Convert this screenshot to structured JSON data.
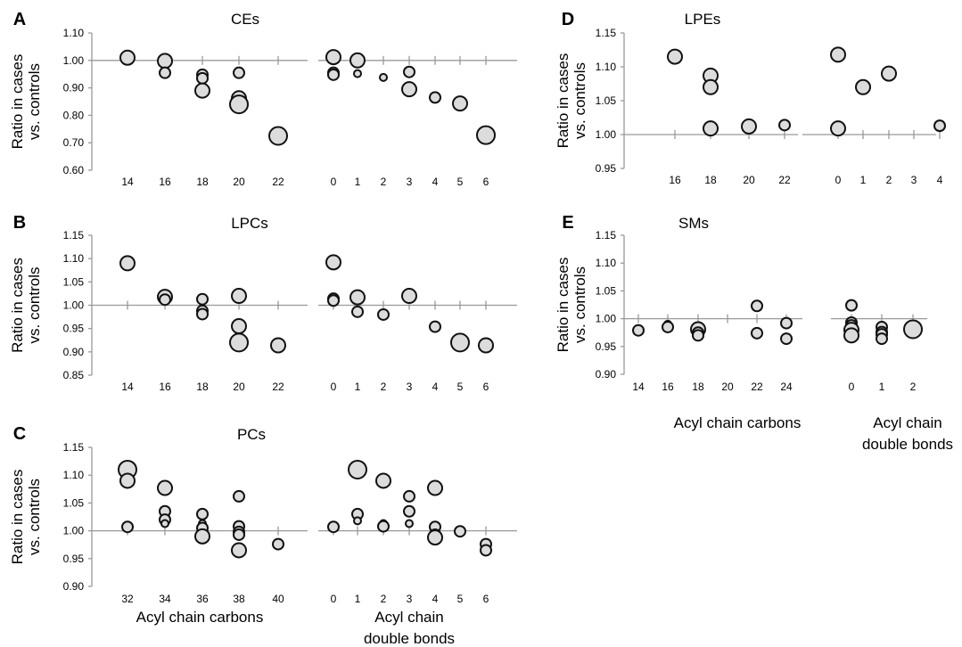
{
  "chart_data": {
    "type": "scatter",
    "ylabel": [
      "Ratio in cases",
      "vs. controls"
    ],
    "group_xlabels": {
      "carbons": [
        "Acyl chain carbons"
      ],
      "bonds": [
        "Acyl chain",
        "double bonds"
      ]
    },
    "colors": {
      "fill": "#dcdcdc",
      "stroke": "#111111",
      "refline": "#999999"
    },
    "panels": [
      {
        "letter": "A",
        "title": "CEs",
        "ylim": [
          0.6,
          1.1
        ],
        "yticks": [
          "0.60",
          "0.70",
          "0.80",
          "0.90",
          "1.00",
          "1.10"
        ],
        "reference_y": 1.0,
        "groups": [
          {
            "key": "carbons",
            "categories": [
              "14",
              "16",
              "18",
              "20",
              "22"
            ],
            "points": [
              {
                "x": "14",
                "y": 1.01,
                "size": "medium"
              },
              {
                "x": "16",
                "y": 0.998,
                "size": "medium"
              },
              {
                "x": "16",
                "y": 0.955,
                "size": "small"
              },
              {
                "x": "18",
                "y": 0.948,
                "size": "small"
              },
              {
                "x": "18",
                "y": 0.935,
                "size": "small"
              },
              {
                "x": "18",
                "y": 0.89,
                "size": "medium"
              },
              {
                "x": "20",
                "y": 0.955,
                "size": "small"
              },
              {
                "x": "20",
                "y": 0.862,
                "size": "medium"
              },
              {
                "x": "20",
                "y": 0.84,
                "size": "large"
              },
              {
                "x": "22",
                "y": 0.725,
                "size": "large"
              }
            ]
          },
          {
            "key": "bonds",
            "categories": [
              "0",
              "1",
              "2",
              "3",
              "4",
              "5",
              "6"
            ],
            "points": [
              {
                "x": "0",
                "y": 1.012,
                "size": "medium"
              },
              {
                "x": "0",
                "y": 0.955,
                "size": "small"
              },
              {
                "x": "0",
                "y": 0.948,
                "size": "small"
              },
              {
                "x": "1",
                "y": 1.0,
                "size": "medium"
              },
              {
                "x": "1",
                "y": 0.952,
                "size": "xsmall"
              },
              {
                "x": "2",
                "y": 0.938,
                "size": "xsmall"
              },
              {
                "x": "3",
                "y": 0.958,
                "size": "small"
              },
              {
                "x": "3",
                "y": 0.895,
                "size": "medium"
              },
              {
                "x": "4",
                "y": 0.865,
                "size": "small"
              },
              {
                "x": "5",
                "y": 0.843,
                "size": "medium"
              },
              {
                "x": "6",
                "y": 0.728,
                "size": "large"
              }
            ]
          }
        ]
      },
      {
        "letter": "B",
        "title": "LPCs",
        "ylim": [
          0.85,
          1.15
        ],
        "yticks": [
          "0.85",
          "0.90",
          "0.95",
          "1.00",
          "1.05",
          "1.10",
          "1.15"
        ],
        "reference_y": 1.0,
        "groups": [
          {
            "key": "carbons",
            "categories": [
              "14",
              "16",
              "18",
              "20",
              "22"
            ],
            "points": [
              {
                "x": "14",
                "y": 1.09,
                "size": "medium"
              },
              {
                "x": "16",
                "y": 1.018,
                "size": "medium"
              },
              {
                "x": "16",
                "y": 1.012,
                "size": "small"
              },
              {
                "x": "18",
                "y": 1.013,
                "size": "small"
              },
              {
                "x": "18",
                "y": 0.988,
                "size": "small"
              },
              {
                "x": "18",
                "y": 0.981,
                "size": "small"
              },
              {
                "x": "20",
                "y": 1.02,
                "size": "medium"
              },
              {
                "x": "20",
                "y": 0.955,
                "size": "medium"
              },
              {
                "x": "20",
                "y": 0.92,
                "size": "large"
              },
              {
                "x": "22",
                "y": 0.914,
                "size": "medium"
              }
            ]
          },
          {
            "key": "bonds",
            "categories": [
              "0",
              "1",
              "2",
              "3",
              "4",
              "5",
              "6"
            ],
            "points": [
              {
                "x": "0",
                "y": 1.092,
                "size": "medium"
              },
              {
                "x": "0",
                "y": 1.014,
                "size": "small"
              },
              {
                "x": "0",
                "y": 1.01,
                "size": "small"
              },
              {
                "x": "1",
                "y": 1.017,
                "size": "medium"
              },
              {
                "x": "1",
                "y": 0.986,
                "size": "small"
              },
              {
                "x": "2",
                "y": 0.98,
                "size": "small"
              },
              {
                "x": "3",
                "y": 1.02,
                "size": "medium"
              },
              {
                "x": "4",
                "y": 0.954,
                "size": "small"
              },
              {
                "x": "5",
                "y": 0.92,
                "size": "large"
              },
              {
                "x": "6",
                "y": 0.914,
                "size": "medium"
              }
            ]
          }
        ]
      },
      {
        "letter": "C",
        "title": "PCs",
        "ylim": [
          0.9,
          1.15
        ],
        "yticks": [
          "0.90",
          "0.95",
          "1.00",
          "1.05",
          "1.10",
          "1.15"
        ],
        "reference_y": 1.0,
        "groups": [
          {
            "key": "carbons",
            "categories": [
              "32",
              "34",
              "36",
              "38",
              "40"
            ],
            "points": [
              {
                "x": "32",
                "y": 1.11,
                "size": "large"
              },
              {
                "x": "32",
                "y": 1.09,
                "size": "medium"
              },
              {
                "x": "32",
                "y": 1.007,
                "size": "small"
              },
              {
                "x": "34",
                "y": 1.077,
                "size": "medium"
              },
              {
                "x": "34",
                "y": 1.035,
                "size": "small"
              },
              {
                "x": "34",
                "y": 1.02,
                "size": "small"
              },
              {
                "x": "34",
                "y": 1.013,
                "size": "xsmall"
              },
              {
                "x": "36",
                "y": 1.03,
                "size": "small"
              },
              {
                "x": "36",
                "y": 1.013,
                "size": "xsmall"
              },
              {
                "x": "36",
                "y": 1.005,
                "size": "small"
              },
              {
                "x": "36",
                "y": 0.99,
                "size": "medium"
              },
              {
                "x": "38",
                "y": 1.062,
                "size": "small"
              },
              {
                "x": "38",
                "y": 1.008,
                "size": "small"
              },
              {
                "x": "38",
                "y": 0.998,
                "size": "small"
              },
              {
                "x": "38",
                "y": 0.993,
                "size": "small"
              },
              {
                "x": "38",
                "y": 0.965,
                "size": "medium"
              },
              {
                "x": "40",
                "y": 0.976,
                "size": "small"
              }
            ]
          },
          {
            "key": "bonds",
            "categories": [
              "0",
              "1",
              "2",
              "3",
              "4",
              "5",
              "6"
            ],
            "points": [
              {
                "x": "0",
                "y": 1.007,
                "size": "small"
              },
              {
                "x": "1",
                "y": 1.11,
                "size": "large"
              },
              {
                "x": "1",
                "y": 1.03,
                "size": "small"
              },
              {
                "x": "1",
                "y": 1.018,
                "size": "xsmall"
              },
              {
                "x": "2",
                "y": 1.09,
                "size": "medium"
              },
              {
                "x": "2",
                "y": 1.013,
                "size": "xsmall"
              },
              {
                "x": "2",
                "y": 1.008,
                "size": "small"
              },
              {
                "x": "3",
                "y": 1.062,
                "size": "small"
              },
              {
                "x": "3",
                "y": 1.035,
                "size": "small"
              },
              {
                "x": "3",
                "y": 1.013,
                "size": "xsmall"
              },
              {
                "x": "4",
                "y": 1.077,
                "size": "medium"
              },
              {
                "x": "4",
                "y": 1.007,
                "size": "small"
              },
              {
                "x": "4",
                "y": 0.993,
                "size": "small"
              },
              {
                "x": "4",
                "y": 0.988,
                "size": "medium"
              },
              {
                "x": "5",
                "y": 0.999,
                "size": "small"
              },
              {
                "x": "6",
                "y": 0.976,
                "size": "small"
              },
              {
                "x": "6",
                "y": 0.965,
                "size": "small"
              }
            ]
          }
        ]
      },
      {
        "letter": "D",
        "title": "LPEs",
        "ylim": [
          0.95,
          1.15
        ],
        "yticks": [
          "0.95",
          "1.00",
          "1.05",
          "1.10",
          "1.15"
        ],
        "reference_y": 1.0,
        "groups": [
          {
            "key": "carbons",
            "categories": [
              "16",
              "18",
              "20",
              "22"
            ],
            "points": [
              {
                "x": "16",
                "y": 1.115,
                "size": "medium"
              },
              {
                "x": "18",
                "y": 1.087,
                "size": "medium"
              },
              {
                "x": "18",
                "y": 1.07,
                "size": "medium"
              },
              {
                "x": "18",
                "y": 1.009,
                "size": "medium"
              },
              {
                "x": "20",
                "y": 1.012,
                "size": "medium"
              },
              {
                "x": "22",
                "y": 1.014,
                "size": "small"
              }
            ]
          },
          {
            "key": "bonds",
            "categories": [
              "0",
              "1",
              "2",
              "3",
              "4"
            ],
            "points": [
              {
                "x": "0",
                "y": 1.118,
                "size": "medium"
              },
              {
                "x": "0",
                "y": 1.009,
                "size": "medium"
              },
              {
                "x": "1",
                "y": 1.07,
                "size": "medium"
              },
              {
                "x": "2",
                "y": 1.09,
                "size": "medium"
              },
              {
                "x": "4",
                "y": 1.013,
                "size": "small"
              }
            ]
          }
        ]
      },
      {
        "letter": "E",
        "title": "SMs",
        "ylim": [
          0.9,
          1.15
        ],
        "yticks": [
          "0.90",
          "0.95",
          "1.00",
          "1.05",
          "1.10",
          "1.15"
        ],
        "reference_y": 1.0,
        "groups": [
          {
            "key": "carbons",
            "categories": [
              "14",
              "16",
              "18",
              "20",
              "22",
              "24"
            ],
            "points": [
              {
                "x": "14",
                "y": 0.979,
                "size": "small"
              },
              {
                "x": "16",
                "y": 0.99,
                "size": "xsmall"
              },
              {
                "x": "16",
                "y": 0.985,
                "size": "small"
              },
              {
                "x": "18",
                "y": 0.981,
                "size": "medium"
              },
              {
                "x": "18",
                "y": 0.975,
                "size": "small"
              },
              {
                "x": "18",
                "y": 0.97,
                "size": "small"
              },
              {
                "x": "22",
                "y": 1.023,
                "size": "small"
              },
              {
                "x": "22",
                "y": 0.974,
                "size": "small"
              },
              {
                "x": "24",
                "y": 0.992,
                "size": "small"
              },
              {
                "x": "24",
                "y": 0.964,
                "size": "small"
              }
            ]
          },
          {
            "key": "bonds",
            "categories": [
              "0",
              "1",
              "2"
            ],
            "points": [
              {
                "x": "0",
                "y": 1.024,
                "size": "small"
              },
              {
                "x": "0",
                "y": 0.993,
                "size": "small"
              },
              {
                "x": "0",
                "y": 0.988,
                "size": "small"
              },
              {
                "x": "0",
                "y": 0.98,
                "size": "medium"
              },
              {
                "x": "0",
                "y": 0.97,
                "size": "medium"
              },
              {
                "x": "1",
                "y": 0.985,
                "size": "small"
              },
              {
                "x": "1",
                "y": 0.976,
                "size": "small"
              },
              {
                "x": "1",
                "y": 0.972,
                "size": "small"
              },
              {
                "x": "1",
                "y": 0.964,
                "size": "small"
              },
              {
                "x": "2",
                "y": 0.981,
                "size": "large"
              }
            ]
          }
        ]
      }
    ]
  }
}
